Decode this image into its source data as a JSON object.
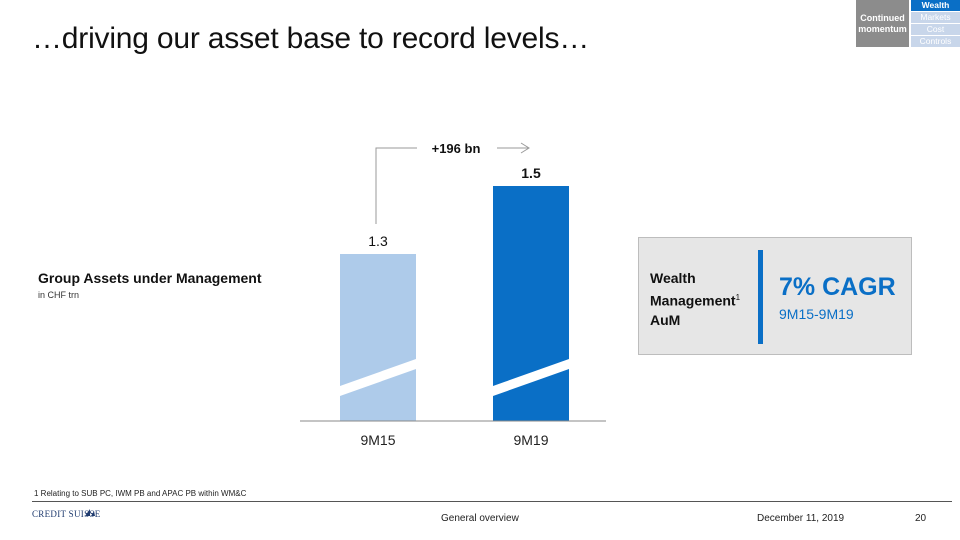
{
  "title": "…driving our asset base to record levels…",
  "nav": {
    "section": "Continued momentum",
    "items": [
      {
        "label": "Wealth",
        "active": true
      },
      {
        "label": "Markets",
        "active": false
      },
      {
        "label": "Cost",
        "active": false
      },
      {
        "label": "Controls",
        "active": false
      }
    ]
  },
  "left_label": {
    "main": "Group Assets under Management",
    "sub": "in CHF trn"
  },
  "chart_data": {
    "type": "bar",
    "categories": [
      "9M15",
      "9M19"
    ],
    "values": [
      1.3,
      1.5
    ],
    "value_labels": [
      "1.3",
      "1.5"
    ],
    "colors": [
      "#aecbea",
      "#0a6fc6"
    ],
    "axis_break": true,
    "annotation": "+196 bn"
  },
  "kpi": {
    "label_line1": "Wealth",
    "label_line2": "Management",
    "label_sup": "1",
    "label_line3": "AuM",
    "value": "7% CAGR",
    "period": "9M15-9M19",
    "accent": "#0a6fc6"
  },
  "footer": {
    "footnote": "1 Relating to SUB PC, IWM PB and APAC PB within WM&C",
    "logo": "Credit Suisse",
    "center": "General overview",
    "date": "December 11, 2019",
    "page": "20"
  }
}
